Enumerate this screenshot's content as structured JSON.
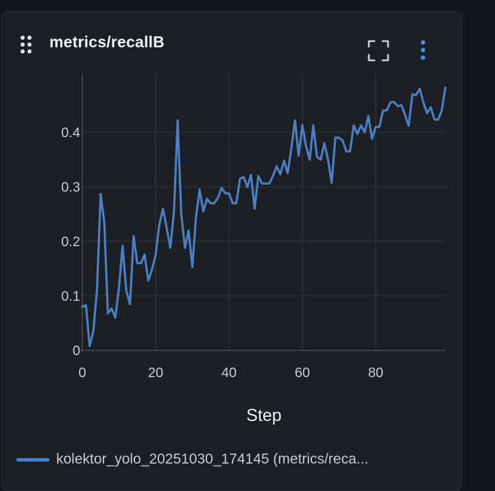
{
  "panel": {
    "title": "metrics/recallB",
    "icons": {
      "drag": "drag-handle-icon",
      "fullscreen": "fullscreen-icon",
      "menu": "more-vertical-icon"
    }
  },
  "chart_data": {
    "type": "line",
    "title": "metrics/recallB",
    "xlabel": "Step",
    "ylabel": "",
    "xlim": [
      0,
      99
    ],
    "ylim": [
      0,
      0.5
    ],
    "x_ticks": [
      "0",
      "20",
      "40",
      "60",
      "80"
    ],
    "x_tick_values": [
      0,
      20,
      40,
      60,
      80
    ],
    "y_ticks": [
      "0",
      "0.1",
      "0.2",
      "0.3",
      "0.4"
    ],
    "y_tick_values": [
      0,
      0.1,
      0.2,
      0.3,
      0.4
    ],
    "grid": true,
    "legend_position": "bottom",
    "series": [
      {
        "name": "kolektor_yolo_20251030_174145 (metrics/reca...",
        "color": "#4a7fc1",
        "x": [
          0,
          1,
          2,
          3,
          4,
          5,
          6,
          7,
          8,
          9,
          10,
          11,
          12,
          13,
          14,
          15,
          16,
          17,
          18,
          19,
          20,
          21,
          22,
          23,
          24,
          25,
          26,
          27,
          28,
          29,
          30,
          31,
          32,
          33,
          34,
          35,
          36,
          37,
          38,
          39,
          40,
          41,
          42,
          43,
          44,
          45,
          46,
          47,
          48,
          49,
          50,
          51,
          52,
          53,
          54,
          55,
          56,
          57,
          58,
          59,
          60,
          61,
          62,
          63,
          64,
          65,
          66,
          67,
          68,
          69,
          70,
          71,
          72,
          73,
          74,
          75,
          76,
          77,
          78,
          79,
          80,
          81,
          82,
          83,
          84,
          85,
          86,
          87,
          88,
          89,
          90,
          91,
          92,
          93,
          94,
          95,
          96,
          97,
          98,
          99
        ],
        "y": [
          0.08,
          0.083,
          0.008,
          0.035,
          0.11,
          0.287,
          0.235,
          0.068,
          0.077,
          0.06,
          0.115,
          0.192,
          0.11,
          0.085,
          0.21,
          0.16,
          0.16,
          0.176,
          0.128,
          0.148,
          0.175,
          0.23,
          0.26,
          0.225,
          0.188,
          0.255,
          0.422,
          0.25,
          0.188,
          0.22,
          0.153,
          0.245,
          0.295,
          0.255,
          0.278,
          0.27,
          0.27,
          0.28,
          0.298,
          0.288,
          0.288,
          0.27,
          0.27,
          0.315,
          0.318,
          0.3,
          0.322,
          0.26,
          0.32,
          0.306,
          0.306,
          0.306,
          0.32,
          0.338,
          0.323,
          0.348,
          0.325,
          0.37,
          0.422,
          0.357,
          0.413,
          0.375,
          0.35,
          0.413,
          0.355,
          0.35,
          0.38,
          0.35,
          0.307,
          0.39,
          0.39,
          0.385,
          0.365,
          0.365,
          0.413,
          0.397,
          0.413,
          0.4,
          0.43,
          0.388,
          0.41,
          0.41,
          0.44,
          0.44,
          0.455,
          0.456,
          0.448,
          0.45,
          0.432,
          0.412,
          0.47,
          0.468,
          0.48,
          0.455,
          0.435,
          0.446,
          0.424,
          0.423,
          0.44,
          0.482
        ]
      }
    ]
  }
}
